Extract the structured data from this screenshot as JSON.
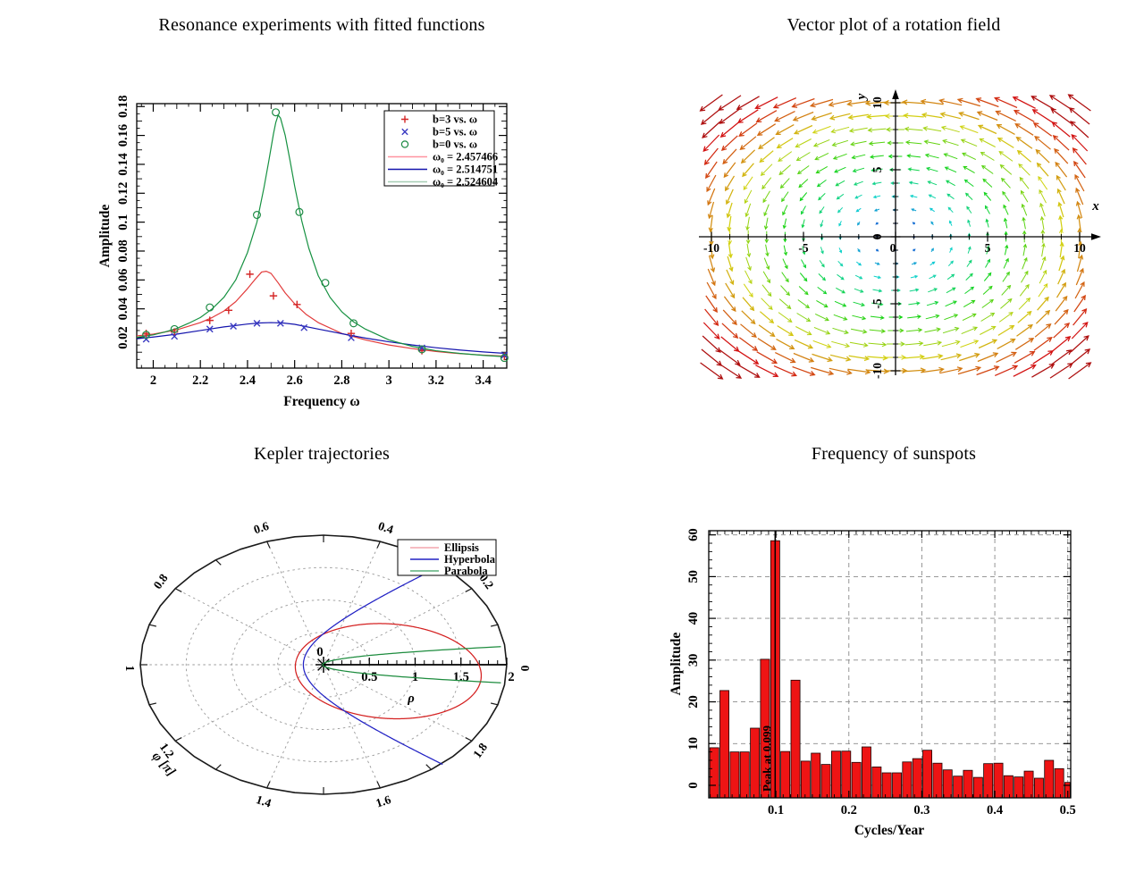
{
  "page_background": "#ffffff",
  "chart_data": [
    {
      "type": "line+scatter",
      "title": "Resonance experiments with fitted functions",
      "xlabel": "Frequency ω",
      "ylabel": "Amplitude",
      "xlim": [
        1.93,
        3.5
      ],
      "ylim": [
        -0.001,
        0.182
      ],
      "xticks": [
        2,
        2.2,
        2.4,
        2.6,
        2.8,
        3,
        3.2,
        3.4
      ],
      "xtick_labels": [
        "2",
        "2.2",
        "2.4",
        "2.6",
        "2.8",
        "3",
        "3.2",
        "3.4"
      ],
      "yticks": [
        0.02,
        0.04,
        0.06,
        0.08,
        0.1,
        0.12,
        0.14,
        0.16,
        0.18
      ],
      "ytick_labels": [
        "0.02",
        "0.04",
        "0.06",
        "0.08",
        "0.1",
        "0.12",
        "0.14",
        "0.16",
        "0.18"
      ],
      "legend_position": "top-right",
      "scatter": [
        {
          "name": "b=3 vs. ω",
          "marker": "plus",
          "color": "#d42626",
          "points": [
            [
              1.97,
              0.023
            ],
            [
              2.09,
              0.024
            ],
            [
              2.24,
              0.032
            ],
            [
              2.32,
              0.039
            ],
            [
              2.41,
              0.064
            ],
            [
              2.51,
              0.049
            ],
            [
              2.61,
              0.043
            ],
            [
              2.84,
              0.023
            ],
            [
              3.14,
              0.011
            ],
            [
              3.49,
              0.007
            ]
          ]
        },
        {
          "name": "b=5 vs. ω",
          "marker": "cross",
          "color": "#3a3ac2",
          "points": [
            [
              1.97,
              0.019
            ],
            [
              2.09,
              0.021
            ],
            [
              2.24,
              0.026
            ],
            [
              2.34,
              0.028
            ],
            [
              2.44,
              0.03
            ],
            [
              2.54,
              0.03
            ],
            [
              2.64,
              0.027
            ],
            [
              2.84,
              0.02
            ],
            [
              3.14,
              0.013
            ],
            [
              3.49,
              0.008
            ]
          ]
        },
        {
          "name": "b=0 vs. ω",
          "marker": "circle",
          "color": "#1e8b45",
          "points": [
            [
              1.97,
              0.022
            ],
            [
              2.09,
              0.026
            ],
            [
              2.24,
              0.041
            ],
            [
              2.44,
              0.105
            ],
            [
              2.52,
              0.176
            ],
            [
              2.62,
              0.107
            ],
            [
              2.73,
              0.058
            ],
            [
              2.85,
              0.03
            ],
            [
              3.14,
              0.012
            ],
            [
              3.49,
              0.006
            ]
          ]
        }
      ],
      "fits": [
        {
          "name": "ω₀ = 2.457466",
          "color": "#e23b3b",
          "legend_color": "#ff93a0",
          "points": [
            [
              1.93,
              0.0213
            ],
            [
              2.0,
              0.0225
            ],
            [
              2.1,
              0.0255
            ],
            [
              2.2,
              0.0305
            ],
            [
              2.25,
              0.034
            ],
            [
              2.3,
              0.0385
            ],
            [
              2.35,
              0.045
            ],
            [
              2.4,
              0.054
            ],
            [
              2.43,
              0.06
            ],
            [
              2.46,
              0.0655
            ],
            [
              2.48,
              0.066
            ],
            [
              2.5,
              0.0645
            ],
            [
              2.53,
              0.058
            ],
            [
              2.56,
              0.051
            ],
            [
              2.6,
              0.0435
            ],
            [
              2.65,
              0.036
            ],
            [
              2.7,
              0.0305
            ],
            [
              2.8,
              0.023
            ],
            [
              2.9,
              0.0185
            ],
            [
              3.0,
              0.015
            ],
            [
              3.1,
              0.0125
            ],
            [
              3.2,
              0.0105
            ],
            [
              3.3,
              0.009
            ],
            [
              3.4,
              0.008
            ],
            [
              3.5,
              0.0072
            ]
          ]
        },
        {
          "name": "ω₀ = 2.514751",
          "color": "#1414ad",
          "legend_color": "#1414ad",
          "points": [
            [
              1.93,
              0.0193
            ],
            [
              2.0,
              0.0205
            ],
            [
              2.1,
              0.0225
            ],
            [
              2.2,
              0.025
            ],
            [
              2.3,
              0.0275
            ],
            [
              2.4,
              0.0295
            ],
            [
              2.45,
              0.0302
            ],
            [
              2.5,
              0.0305
            ],
            [
              2.55,
              0.0302
            ],
            [
              2.6,
              0.0293
            ],
            [
              2.7,
              0.026
            ],
            [
              2.8,
              0.0228
            ],
            [
              2.9,
              0.0198
            ],
            [
              3.0,
              0.0172
            ],
            [
              3.1,
              0.015
            ],
            [
              3.2,
              0.0131
            ],
            [
              3.3,
              0.0115
            ],
            [
              3.4,
              0.0102
            ],
            [
              3.5,
              0.0091
            ]
          ]
        },
        {
          "name": "ω₀ = 2.524604",
          "color": "#169141",
          "legend_color": "#a6cdb4",
          "points": [
            [
              1.93,
              0.0203
            ],
            [
              2.0,
              0.022
            ],
            [
              2.05,
              0.024
            ],
            [
              2.1,
              0.0265
            ],
            [
              2.15,
              0.03
            ],
            [
              2.2,
              0.034
            ],
            [
              2.25,
              0.04
            ],
            [
              2.3,
              0.048
            ],
            [
              2.35,
              0.06
            ],
            [
              2.4,
              0.079
            ],
            [
              2.44,
              0.1
            ],
            [
              2.47,
              0.124
            ],
            [
              2.49,
              0.142
            ],
            [
              2.51,
              0.161
            ],
            [
              2.52,
              0.169
            ],
            [
              2.53,
              0.174
            ],
            [
              2.54,
              0.172
            ],
            [
              2.56,
              0.16
            ],
            [
              2.58,
              0.143
            ],
            [
              2.6,
              0.125
            ],
            [
              2.63,
              0.101
            ],
            [
              2.66,
              0.082
            ],
            [
              2.7,
              0.063
            ],
            [
              2.75,
              0.048
            ],
            [
              2.8,
              0.038
            ],
            [
              2.85,
              0.031
            ],
            [
              2.9,
              0.026
            ],
            [
              3.0,
              0.0185
            ],
            [
              3.1,
              0.014
            ],
            [
              3.2,
              0.011
            ],
            [
              3.3,
              0.0092
            ],
            [
              3.4,
              0.0078
            ],
            [
              3.5,
              0.0068
            ]
          ]
        }
      ]
    },
    {
      "type": "vector",
      "title": "Vector plot of a rotation field",
      "xlabel": "x",
      "ylabel": "y",
      "xticks": [
        -10,
        -5,
        0,
        5,
        10
      ],
      "xtick_labels": [
        "-10",
        "-5",
        "0",
        "5",
        "10"
      ],
      "yticks": [
        -10,
        -5,
        0,
        5,
        10
      ],
      "ytick_labels": [
        "-10",
        "-5",
        "0",
        "5",
        "10"
      ],
      "grid": {
        "xmin": -10,
        "xmax": 10,
        "ymin": -10,
        "ymax": 10,
        "step": 1
      },
      "field_formula": "v(x,y) = (-y, x)",
      "arrow_scale": 0.12,
      "color_mapping": "by magnitude: blue (center) → cyan → green → yellow → orange → red (corners)"
    },
    {
      "type": "polar",
      "title": "Kepler trajectories",
      "angle_axis_label": "φ [π]",
      "radial_axis_label": "ρ",
      "angle_ticks_pi": [
        0,
        0.2,
        0.4,
        0.6,
        0.8,
        1,
        1.2,
        1.4,
        1.6,
        1.8
      ],
      "angle_tick_labels": [
        "0",
        "0.2",
        "0.4",
        "0.6",
        "0.8",
        "1",
        "1.2",
        "1.4",
        "1.6",
        "1.8"
      ],
      "radial_rings": [
        0.5,
        1,
        1.5
      ],
      "radius_max": 2,
      "radial_tick_labels": [
        {
          "rho": 0,
          "label": "0"
        },
        {
          "rho": 0.5,
          "label": "0.5"
        },
        {
          "rho": 1,
          "label": "1"
        },
        {
          "rho": 1.5,
          "label": "1.5"
        },
        {
          "rho": 2,
          "label": "2"
        }
      ],
      "origin_marker": "asterisk",
      "series": [
        {
          "name": "Ellipsis",
          "curve_color": "#d42020",
          "legend_color": "#f4a6ae",
          "eccentricity": 0.7,
          "semi_latus_rectum": 0.52,
          "tilt_deg": -8
        },
        {
          "name": "Hyperbola",
          "curve_color": "#2121c4",
          "legend_color": "#2121c4",
          "eccentricity": 1.18,
          "semi_latus_rectum": 0.48,
          "tilt_deg": 0
        },
        {
          "name": "Parabola",
          "curve_color": "#1d8c3e",
          "legend_color": "#5cb07c",
          "eccentricity": 1.0,
          "semi_latus_rectum": 0.02,
          "tilt_deg": 0
        }
      ]
    },
    {
      "type": "bar",
      "title": "Frequency of sunspots",
      "xlabel": "Cycles/Year",
      "ylabel": "Amplitude",
      "xlim": [
        0.008,
        0.504
      ],
      "ylim": [
        -3,
        61
      ],
      "xticks": [
        0.1,
        0.2,
        0.3,
        0.4,
        0.5
      ],
      "xtick_labels": [
        "0.1",
        "0.2",
        "0.3",
        "0.4",
        "0.5"
      ],
      "yticks": [
        0,
        10,
        20,
        30,
        40,
        50,
        60
      ],
      "ytick_labels": [
        "0",
        "10",
        "20",
        "30",
        "40",
        "50",
        "60"
      ],
      "bar_color": "#ee1414",
      "bar_edge_color": "#1a0000",
      "bin_start": 0.0087,
      "bin_width": 0.0139,
      "values": [
        9,
        22.7,
        8,
        8,
        13.7,
        30.2,
        58.6,
        8.1,
        25.2,
        5.8,
        7.7,
        5,
        8.2,
        8.2,
        5.5,
        9.2,
        4.4,
        3,
        3,
        5.6,
        6.4,
        8.4,
        5.3,
        3.7,
        2.2,
        3.6,
        1.9,
        5.2,
        5.3,
        2.3,
        2,
        3.4,
        1.7,
        6,
        4,
        0.7
      ],
      "annotation": {
        "text": "Peak at 0.099",
        "x": 0.099
      },
      "grid": "dashed"
    }
  ]
}
